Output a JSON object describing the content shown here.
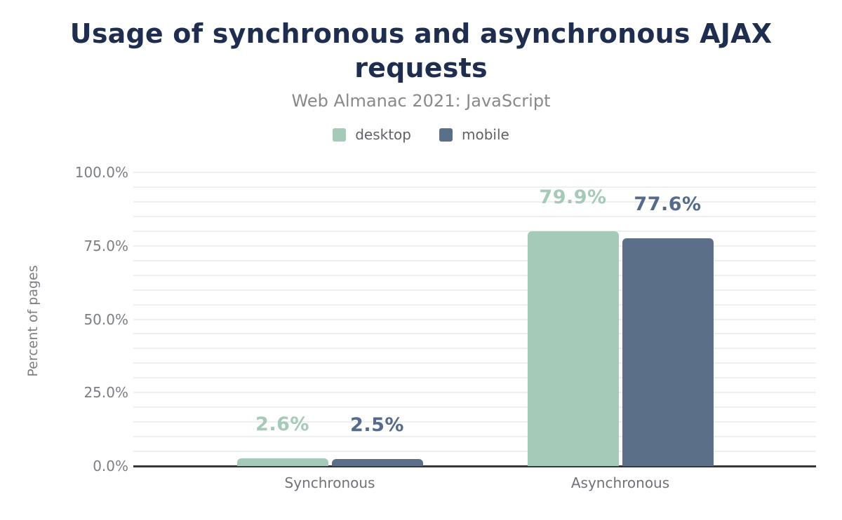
{
  "title": "Usage of synchronous and asynchronous AJAX requests",
  "subtitle": "Web Almanac 2021: JavaScript",
  "legend": {
    "items": [
      {
        "label": "desktop",
        "color": "#a5cab7"
      },
      {
        "label": "mobile",
        "color": "#5c6f88"
      }
    ]
  },
  "y_axis": {
    "title": "Percent of pages",
    "tick_labels": [
      "100.0%",
      "75.0%",
      "50.0%",
      "25.0%",
      "0.0%"
    ],
    "tick_values": [
      100,
      75,
      50,
      25,
      0
    ]
  },
  "chart_data": {
    "type": "bar",
    "title": "Usage of synchronous and asynchronous AJAX requests",
    "subtitle": "Web Almanac 2021: JavaScript",
    "categories": [
      "Synchronous",
      "Asynchronous"
    ],
    "series": [
      {
        "name": "desktop",
        "values": [
          2.6,
          79.9
        ],
        "data_labels": [
          "2.6%",
          "79.9%"
        ],
        "color": "#a5cab7",
        "label_color": "#a5cab7"
      },
      {
        "name": "mobile",
        "values": [
          2.5,
          77.6
        ],
        "data_labels": [
          "2.5%",
          "77.6%"
        ],
        "color": "#5c6f88",
        "label_color": "#566a89"
      }
    ],
    "xlabel": "",
    "ylabel": "Percent of pages",
    "ylim": [
      0,
      100
    ],
    "grid": true,
    "grid_minor_step": 5,
    "tick_step": 25,
    "legend_position": "top"
  },
  "colors": {
    "title_text": "#1f2e4e",
    "subtitle_text": "#87898c",
    "legend_text": "#5f6266",
    "axis_text": "#7b7e83",
    "category_text": "#6f7277",
    "gridline": "#efefef",
    "axis_line": "#36373b",
    "background": "#ffffff"
  }
}
